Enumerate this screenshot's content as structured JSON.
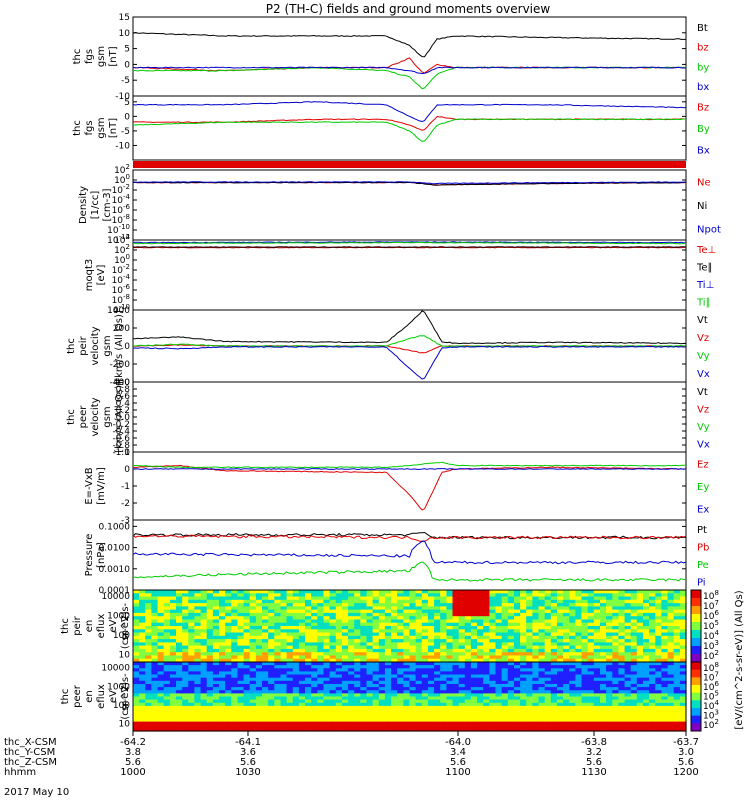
{
  "title": "P2 (TH-C) fields and ground moments overview",
  "date_label": "2017 May 10",
  "footer": {
    "rows": [
      {
        "label": "thc_X-CSM",
        "values": [
          "-64.2",
          "-64.1",
          "-64.0",
          "-63.8",
          "-63.7"
        ],
        "tick_values": [
          "-64.2",
          "-64.1",
          "-64.0",
          "-63.8",
          "-63.7"
        ]
      },
      {
        "label": "thc_Y-CSM",
        "values": [
          "3.8",
          "3.6",
          "3.4",
          "3.2",
          "3.0"
        ]
      },
      {
        "label": "thc_Z-CSM",
        "values": [
          "5.6",
          "5.6",
          "5.6",
          "5.6",
          "5.6"
        ]
      },
      {
        "label": "hhmm",
        "values": [
          "1000",
          "1030",
          "1100",
          "1130",
          "1200"
        ]
      }
    ]
  },
  "colors": {
    "black": "#000000",
    "red": "#e00000",
    "green": "#00cc00",
    "blue": "#0000cc"
  },
  "chart_data": [
    {
      "type": "line",
      "ylabel": [
        "thc",
        "fgs",
        "gsm",
        "[nT]"
      ],
      "ylim": [
        -10,
        15
      ],
      "ticks": [
        "15",
        "10",
        "5",
        "0",
        "-5",
        "-10"
      ],
      "legend": [
        {
          "name": "Bt",
          "color": "#000000"
        },
        {
          "name": "bz",
          "color": "#e00000"
        },
        {
          "name": "by",
          "color": "#00cc00"
        },
        {
          "name": "bx",
          "color": "#0000cc"
        }
      ],
      "x": [
        0,
        20,
        40,
        55,
        60,
        63,
        66,
        70,
        90,
        120
      ],
      "series": [
        {
          "name": "Bt",
          "values": [
            10,
            9,
            9,
            9,
            6,
            2,
            8,
            9,
            8.5,
            8
          ]
        },
        {
          "name": "bz",
          "values": [
            -1,
            -2,
            -1,
            -1,
            2,
            -3,
            0,
            -1,
            -1,
            -1
          ]
        },
        {
          "name": "by",
          "values": [
            -2,
            -2,
            -1,
            -2,
            -4,
            -8,
            -3,
            -1,
            -1,
            -1
          ]
        },
        {
          "name": "bx",
          "values": [
            -1,
            -1,
            -1,
            -1,
            -2,
            -3,
            -1,
            -1,
            -1,
            -1
          ]
        }
      ]
    },
    {
      "type": "line",
      "ylabel": [
        "thc",
        "fgs",
        "gsm",
        "[nT]"
      ],
      "ylim": [
        -15,
        7
      ],
      "ticks": [
        "5",
        "0",
        "-5",
        "-10"
      ],
      "legend": [
        {
          "name": "Bz",
          "color": "#e00000"
        },
        {
          "name": "By",
          "color": "#00cc00"
        },
        {
          "name": "Bx",
          "color": "#0000cc"
        }
      ],
      "x": [
        0,
        20,
        40,
        55,
        60,
        63,
        66,
        70,
        90,
        120
      ],
      "series": [
        {
          "name": "Bz",
          "values": [
            -2,
            -2,
            -1,
            -1,
            -3,
            -5,
            0,
            -1,
            -1,
            -1
          ]
        },
        {
          "name": "By",
          "values": [
            -3,
            -2,
            -2,
            -2,
            -5,
            -9,
            -3,
            -1,
            -1,
            -1
          ]
        },
        {
          "name": "Bx",
          "values": [
            4,
            4,
            5,
            4,
            0,
            -2,
            4,
            4,
            4,
            3
          ]
        }
      ]
    },
    {
      "type": "line",
      "ylabel": [
        "Density",
        "[1/cc]",
        "[cm-3]"
      ],
      "ylim": [
        "10^-12",
        "10^2"
      ],
      "ticks": [
        "10^2",
        "10^0",
        "10^-2",
        "10^-4",
        "10^-6",
        "10^-8",
        "10^-10",
        "10^-12"
      ],
      "legend": [
        {
          "name": "Ne",
          "color": "#e00000"
        },
        {
          "name": "Ni",
          "color": "#000000"
        },
        {
          "name": "Npot",
          "color": "#0000cc"
        }
      ],
      "x": [
        0,
        60,
        65,
        120
      ],
      "series": [
        {
          "name": "Ne",
          "values": [
            0.3,
            0.3,
            0.1,
            0.3
          ]
        },
        {
          "name": "Ni",
          "values": [
            0.3,
            0.3,
            0.1,
            0.3
          ]
        },
        {
          "name": "Npot",
          "values": [
            0.4,
            0.4,
            0.2,
            0.4
          ]
        }
      ]
    },
    {
      "type": "line",
      "ylabel": [
        "moqt3",
        "[eV]"
      ],
      "ylim": [
        "10^-10",
        "10^4"
      ],
      "ticks": [
        "10^4",
        "10^2",
        "10^0",
        "10^-2",
        "10^-4",
        "10^-6",
        "10^-8",
        "10^-10"
      ],
      "legend": [
        {
          "name": "Te⊥",
          "color": "#e00000"
        },
        {
          "name": "Te∥",
          "color": "#000000"
        },
        {
          "name": "Ti⊥",
          "color": "#0000cc"
        },
        {
          "name": "Ti∥",
          "color": "#00cc00"
        }
      ],
      "x": [
        0,
        60,
        120
      ],
      "series": [
        {
          "name": "Te⊥",
          "values": [
            300,
            300,
            300
          ]
        },
        {
          "name": "Te∥",
          "values": [
            400,
            400,
            400
          ]
        },
        {
          "name": "Ti⊥",
          "values": [
            3000,
            4000,
            3000
          ]
        },
        {
          "name": "Ti∥",
          "values": [
            2000,
            3000,
            2000
          ]
        }
      ]
    },
    {
      "type": "line",
      "ylabel": [
        "thc",
        "peir",
        "velocity",
        "gsm",
        "[km/s (All Qs)]"
      ],
      "ylim": [
        -400,
        400
      ],
      "ticks": [
        "400",
        "200",
        "0",
        "-200",
        "-400"
      ],
      "legend": [
        {
          "name": "Vt",
          "color": "#000000"
        },
        {
          "name": "Vz",
          "color": "#e00000"
        },
        {
          "name": "Vy",
          "color": "#00cc00"
        },
        {
          "name": "Vx",
          "color": "#0000cc"
        }
      ],
      "x": [
        0,
        10,
        20,
        55,
        60,
        63,
        67,
        70,
        90,
        120
      ],
      "series": [
        {
          "name": "Vt",
          "values": [
            80,
            100,
            50,
            40,
            250,
            400,
            50,
            30,
            40,
            30
          ]
        },
        {
          "name": "Vz",
          "values": [
            0,
            10,
            0,
            0,
            -50,
            -80,
            0,
            0,
            0,
            0
          ]
        },
        {
          "name": "Vy",
          "values": [
            0,
            20,
            0,
            0,
            80,
            120,
            0,
            0,
            0,
            0
          ]
        },
        {
          "name": "Vx",
          "values": [
            -20,
            -30,
            -10,
            -10,
            -250,
            -380,
            -20,
            -10,
            -10,
            -10
          ]
        }
      ]
    },
    {
      "type": "line",
      "ylabel": [
        "thc",
        "peer",
        "velocity",
        "gsm",
        "[km/s (All Qs)]"
      ],
      "ylim": [
        -1,
        1
      ],
      "ticks": [
        "1.0",
        "0.8",
        "0.6",
        "0.4",
        "0.2",
        "0.0",
        "-0.2",
        "-0.4",
        "-0.6",
        "-0.8",
        "-1.0"
      ],
      "legend": [
        {
          "name": "Vt",
          "color": "#000000"
        },
        {
          "name": "Vz",
          "color": "#e00000"
        },
        {
          "name": "Vy",
          "color": "#00cc00"
        },
        {
          "name": "Vx",
          "color": "#0000cc"
        }
      ],
      "x": [],
      "series": []
    },
    {
      "type": "line",
      "ylabel": [
        "E=-VxB",
        "[mV/m]"
      ],
      "ylim": [
        -3,
        1
      ],
      "ticks": [
        "1",
        "0",
        "-1",
        "-2",
        "-3"
      ],
      "legend": [
        {
          "name": "Ez",
          "color": "#e00000"
        },
        {
          "name": "Ey",
          "color": "#00cc00"
        },
        {
          "name": "Ex",
          "color": "#0000cc"
        }
      ],
      "x": [
        0,
        10,
        20,
        55,
        60,
        63,
        67,
        70,
        90,
        120
      ],
      "series": [
        {
          "name": "Ez",
          "values": [
            0.1,
            0.2,
            -0.1,
            -0.2,
            -1.5,
            -2.5,
            -0.2,
            0,
            0.1,
            0
          ],
          "note": ""
        },
        {
          "name": "Ey",
          "values": [
            0.2,
            0.1,
            0.1,
            0.1,
            0.2,
            0.3,
            0.4,
            0.2,
            0.2,
            0.2
          ]
        },
        {
          "name": "Ex",
          "values": [
            0,
            0,
            0,
            0,
            0,
            0,
            0,
            0,
            0,
            0
          ]
        }
      ]
    },
    {
      "type": "line",
      "ylabel": [
        "Pressure",
        "[nPa]"
      ],
      "ylim": [
        0.0001,
        0.2
      ],
      "ticks": [
        "0.1000",
        "0.0100",
        "0.0010",
        "0.0001"
      ],
      "legend": [
        {
          "name": "Pt",
          "color": "#000000"
        },
        {
          "name": "Pb",
          "color": "#e00000"
        },
        {
          "name": "Pe",
          "color": "#00cc00"
        },
        {
          "name": "Pi",
          "color": "#0000cc"
        }
      ],
      "x": [
        0,
        60,
        63,
        65,
        120
      ],
      "series": [
        {
          "name": "Pt",
          "values": [
            0.04,
            0.04,
            0.05,
            0.03,
            0.03
          ]
        },
        {
          "name": "Pb",
          "values": [
            0.035,
            0.03,
            0.02,
            0.03,
            0.03
          ]
        },
        {
          "name": "Pe",
          "values": [
            0.0004,
            0.0008,
            0.002,
            0.0003,
            0.0003
          ]
        },
        {
          "name": "Pi",
          "values": [
            0.005,
            0.004,
            0.02,
            0.002,
            0.002
          ]
        }
      ]
    },
    {
      "type": "heatmap",
      "ylabel": [
        "thc",
        "peir",
        "en",
        "eflux",
        "eV",
        "(cm^2-s-",
        "sr-eV)"
      ],
      "ticks": [
        "10000",
        "1000",
        "100",
        "10"
      ],
      "colorbar": {
        "ticks": [
          "10^8",
          "10^7",
          "10^6",
          "10^5",
          "10^4",
          "10^3",
          "10^2"
        ],
        "label": "[eV/(cm^2-s-sr-eV)] (All Qs)"
      }
    },
    {
      "type": "heatmap",
      "ylabel": [
        "thc",
        "peer",
        "en",
        "eflux",
        "eV",
        "(cm^2-s-",
        "sr-eV)"
      ],
      "ticks": [
        "10000",
        "1000",
        "100",
        "10"
      ],
      "colorbar": {
        "ticks": [
          "10^8",
          "10^7",
          "10^6",
          "10^5",
          "10^4",
          "10^3",
          "10^2"
        ],
        "label": "[eV/(cm^2-s-sr-eV)] (All Qs)"
      }
    }
  ]
}
